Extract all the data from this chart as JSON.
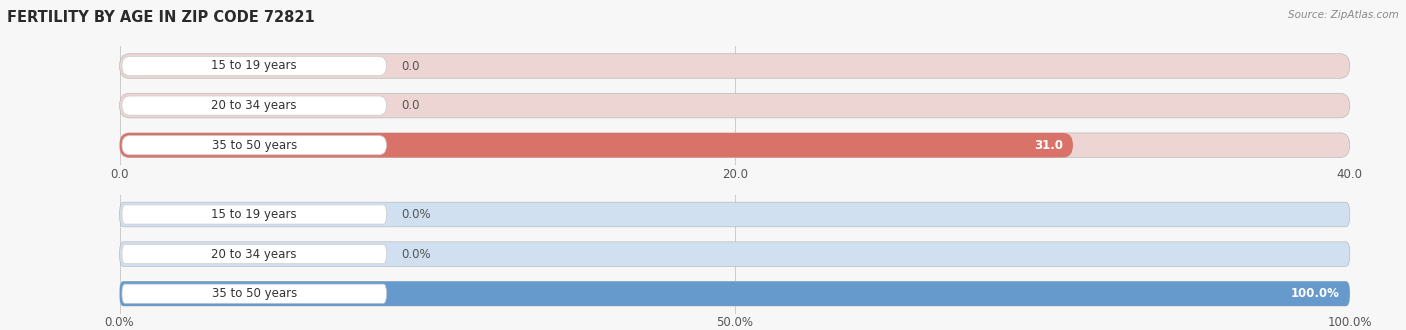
{
  "title": "FERTILITY BY AGE IN ZIP CODE 72821",
  "source": "Source: ZipAtlas.com",
  "top_chart": {
    "categories": [
      "15 to 19 years",
      "20 to 34 years",
      "35 to 50 years"
    ],
    "values": [
      0.0,
      0.0,
      31.0
    ],
    "xlim": [
      0,
      40
    ],
    "xticks": [
      0.0,
      20.0,
      40.0
    ],
    "xtick_labels": [
      "0.0",
      "20.0",
      "40.0"
    ],
    "bar_color": "#d9736a",
    "bar_bg_color": "#edd5d3",
    "label_color_inside": "#ffffff"
  },
  "bottom_chart": {
    "categories": [
      "15 to 19 years",
      "20 to 34 years",
      "35 to 50 years"
    ],
    "values": [
      0.0,
      0.0,
      100.0
    ],
    "xlim": [
      0,
      100
    ],
    "xticks": [
      0.0,
      50.0,
      100.0
    ],
    "xtick_labels": [
      "0.0%",
      "50.0%",
      "100.0%"
    ],
    "bar_color": "#6699cc",
    "bar_bg_color": "#d0e0f0",
    "label_color_inside": "#ffffff"
  },
  "bg_color": "#f7f7f7",
  "bar_height": 0.62,
  "label_fontsize": 8.5,
  "tick_fontsize": 8.5,
  "title_fontsize": 10.5,
  "category_fontsize": 8.5,
  "badge_color": "#ffffff",
  "badge_text_color": "#333333"
}
